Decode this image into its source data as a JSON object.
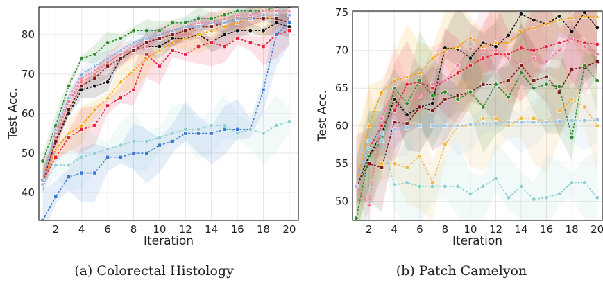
{
  "chart_data": [
    {
      "type": "line",
      "caption": "(a) Colorectal Histology",
      "xlabel": "Iteration",
      "ylabel": "Test Acc.",
      "xlim": [
        0.7,
        20.7
      ],
      "ylim": [
        33,
        87
      ],
      "xticks": [
        2,
        4,
        6,
        8,
        10,
        12,
        14,
        16,
        18,
        20
      ],
      "yticks": [
        40,
        50,
        60,
        70,
        80
      ],
      "grid": true,
      "x": [
        1,
        2,
        3,
        4,
        5,
        6,
        7,
        8,
        9,
        10,
        11,
        12,
        13,
        14,
        15,
        16,
        17,
        18,
        19,
        20
      ],
      "series": [
        {
          "color": "#2e8b2e",
          "marker": "circle",
          "band": 3,
          "values": [
            48,
            57,
            67,
            74,
            75,
            78,
            79,
            81,
            81,
            81,
            83,
            83,
            84,
            84,
            85,
            86,
            86,
            86,
            87,
            87
          ]
        },
        {
          "color": "#111111",
          "marker": "circle",
          "band": 3,
          "values": [
            43,
            53,
            60,
            66,
            67,
            68,
            74,
            76,
            77,
            77,
            79,
            79,
            80,
            78,
            80,
            81,
            81,
            81,
            83,
            82
          ]
        },
        {
          "color": "#e8203a",
          "marker": "square",
          "band": 6,
          "values": [
            43,
            49,
            54,
            56,
            57,
            62,
            64,
            66,
            75,
            72,
            76,
            75,
            77,
            78,
            77,
            79,
            78,
            77,
            80,
            81
          ]
        },
        {
          "color": "#f5a000",
          "marker": "triangle",
          "band": 5,
          "values": [
            43,
            51,
            55,
            57,
            61,
            64,
            68,
            71,
            74,
            76,
            78,
            79,
            80,
            81,
            82,
            83,
            84,
            84,
            85,
            85
          ]
        },
        {
          "color": "#f07ca0",
          "marker": "triangle",
          "band": 3,
          "values": [
            43,
            55,
            63,
            69,
            71,
            73,
            75,
            77,
            78,
            80,
            81,
            82,
            83,
            83,
            84,
            85,
            85,
            86,
            86,
            86
          ]
        },
        {
          "color": "#f08080",
          "marker": "circle",
          "band": 3,
          "values": [
            42,
            54,
            63,
            68,
            70,
            73,
            75,
            76,
            77,
            79,
            80,
            81,
            82,
            83,
            83,
            84,
            84,
            85,
            85,
            85
          ]
        },
        {
          "color": "#7b1a1a",
          "marker": "square",
          "band": 3,
          "values": [
            43,
            53,
            61,
            67,
            69,
            72,
            74,
            76,
            78,
            79,
            80,
            81,
            82,
            82,
            83,
            84,
            84,
            84,
            84,
            83
          ]
        },
        {
          "color": "#7fb1e8",
          "marker": "triangle",
          "band": 3,
          "values": [
            43,
            56,
            64,
            70,
            72,
            74,
            76,
            78,
            79,
            80,
            81,
            82,
            82,
            83,
            83,
            84,
            84,
            85,
            85,
            85
          ]
        },
        {
          "color": "#3a7bd5",
          "marker": "square",
          "band": 8,
          "values": [
            33,
            39,
            44,
            45,
            45,
            49,
            49,
            50,
            50,
            52,
            53,
            55,
            55,
            55,
            56,
            56,
            56,
            66,
            80,
            83
          ]
        },
        {
          "color": "#8fcfcf",
          "marker": "circle",
          "band": 8,
          "values": [
            42,
            47,
            47,
            49,
            50,
            51,
            52,
            53,
            53,
            54,
            55,
            56,
            56,
            57,
            57,
            55,
            56,
            55,
            57,
            58
          ]
        }
      ]
    },
    {
      "type": "line",
      "caption": "(b) Patch Camelyon",
      "xlabel": "Iteration",
      "ylabel": "Test Acc.",
      "xlim": [
        0.7,
        20.4
      ],
      "ylim": [
        47.5,
        75.2
      ],
      "xticks": [
        2,
        4,
        6,
        8,
        10,
        12,
        14,
        16,
        18,
        20
      ],
      "yticks": [
        50,
        55,
        60,
        65,
        70,
        75
      ],
      "grid": true,
      "x": [
        1,
        2,
        3,
        4,
        5,
        6,
        7,
        8,
        9,
        10,
        11,
        12,
        13,
        14,
        15,
        16,
        17,
        18,
        19,
        20
      ],
      "series": [
        {
          "color": "#111111",
          "marker": "circle",
          "band": 6,
          "values": [
            52,
            56,
            59,
            63.5,
            61.5,
            62.5,
            63,
            70.3,
            70.2,
            69,
            71,
            70.5,
            72,
            74.8,
            74,
            73.5,
            74.5,
            72.5,
            75,
            73
          ]
        },
        {
          "color": "#f5a000",
          "marker": "triangle",
          "band": 7,
          "values": [
            52,
            60,
            64.5,
            66,
            66.5,
            67,
            69,
            70,
            70.5,
            71.7,
            70.5,
            71,
            71,
            72.5,
            73,
            73.5,
            74,
            74.3,
            74.5,
            74.5
          ]
        },
        {
          "color": "#e8203a",
          "marker": "circle",
          "band": 7,
          "values": [
            52,
            57,
            60,
            62,
            65.5,
            65.8,
            65,
            66,
            67,
            68,
            69,
            69.5,
            69.5,
            70.3,
            70,
            70.5,
            71,
            71.5,
            71,
            70.8
          ]
        },
        {
          "color": "#f07ca0",
          "marker": "circle",
          "band": 6,
          "values": [
            52,
            49.5,
            61,
            65,
            63,
            64,
            65.5,
            66,
            68,
            70.2,
            70,
            70,
            69,
            68,
            69,
            68.5,
            70,
            71.5,
            70.5,
            69.5
          ]
        },
        {
          "color": "#7b1a1a",
          "marker": "square",
          "band": 6,
          "values": [
            52,
            55,
            54.5,
            60.5,
            60.3,
            62.5,
            62,
            63.5,
            64,
            64.5,
            65.5,
            65.5,
            66,
            68,
            66,
            66.5,
            64.5,
            67.5,
            67.8,
            68.5
          ]
        },
        {
          "color": "#2e8b2e",
          "marker": "circle",
          "band": 7,
          "values": [
            47.8,
            56,
            58,
            65,
            63,
            66,
            64,
            64.5,
            63.5,
            64.5,
            62.5,
            65.5,
            63.8,
            67,
            65,
            65.5,
            65.2,
            58.5,
            68,
            66
          ]
        },
        {
          "color": "#f0b84a",
          "marker": "square",
          "band": 7,
          "values": [
            52,
            58,
            55,
            55,
            54.5,
            56,
            52.5,
            57.5,
            60,
            60,
            61,
            61,
            60,
            61,
            61,
            60.5,
            62,
            63.5,
            62.5,
            60
          ]
        },
        {
          "color": "#8fcfcf",
          "marker": "circle",
          "band": 6,
          "values": [
            52,
            57,
            58,
            52.2,
            52.5,
            52,
            52,
            52,
            52,
            51,
            52,
            53,
            50.5,
            52,
            50.3,
            50.5,
            51,
            52.5,
            52.5,
            50.5
          ]
        },
        {
          "color": "#9bc4e8",
          "marker": "square",
          "band": 4,
          "values": [
            52,
            58,
            59,
            59.5,
            59.8,
            60,
            60,
            60,
            60,
            60.2,
            60.3,
            60.3,
            60.5,
            60.5,
            60.5,
            60.5,
            60.6,
            60.7,
            60.7,
            60.8
          ]
        }
      ]
    }
  ]
}
